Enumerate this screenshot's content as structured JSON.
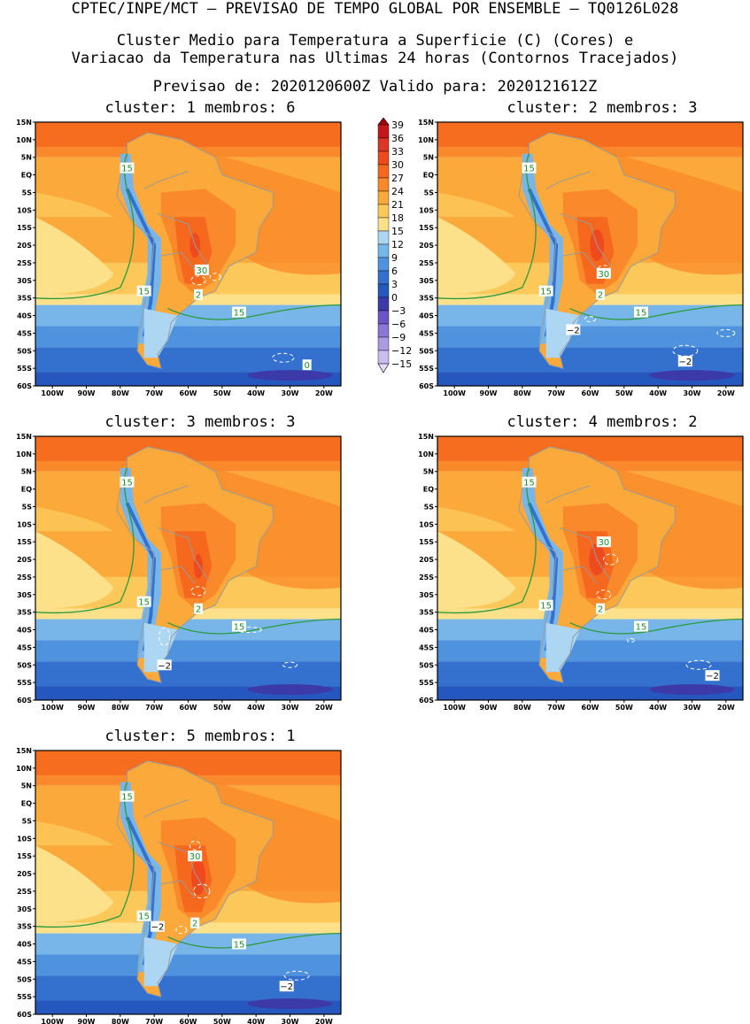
{
  "header": {
    "line1": "CPTEC/INPE/MCT — PREVISAO DE TEMPO GLOBAL POR ENSEMBLE — TQ0126L028",
    "line2": "Cluster Medio para Temperatura a Superficie (C) (Cores) e",
    "line3": "Variacao da Temperatura nas Ultimas 24 horas (Contornos Tracejados)",
    "line4": "Previsao de: 2020120600Z   Valido para: 2020121612Z"
  },
  "axes": {
    "lat_labels": [
      "15N",
      "10N",
      "5N",
      "EQ",
      "5S",
      "10S",
      "15S",
      "20S",
      "25S",
      "30S",
      "35S",
      "40S",
      "45S",
      "50S",
      "55S",
      "60S"
    ],
    "lon_labels": [
      "100W",
      "90W",
      "80W",
      "70W",
      "60W",
      "50W",
      "40W",
      "30W",
      "20W"
    ]
  },
  "colorbar": {
    "levels": [
      "39",
      "36",
      "33",
      "30",
      "27",
      "24",
      "21",
      "18",
      "15",
      "12",
      "9",
      "6",
      "3",
      "0",
      "−3",
      "−6",
      "−9",
      "−12",
      "−15"
    ],
    "colors": [
      "#a5000e",
      "#c4161c",
      "#dd3526",
      "#ee4a1d",
      "#f6681e",
      "#f9892a",
      "#fba93a",
      "#fdc85a",
      "#fde08a",
      "#acd6f2",
      "#78b6ea",
      "#4f93de",
      "#3471cf",
      "#2557bf",
      "#3c3aa8",
      "#6a55c8",
      "#8a77d6",
      "#a99ae2",
      "#c8bdee",
      "#e3dbf7"
    ]
  },
  "panels": [
    {
      "title": "cluster: 1   membros: 6",
      "labels": [
        "15",
        "15",
        "15",
        "30",
        "2",
        "0"
      ]
    },
    {
      "title": "cluster: 2   membros: 3",
      "labels": [
        "15",
        "15",
        "15",
        "30",
        "2",
        "−2",
        "−2"
      ]
    },
    {
      "title": "cluster: 3   membros: 3",
      "labels": [
        "15",
        "15",
        "15",
        "2",
        "−2"
      ]
    },
    {
      "title": "cluster: 4   membros: 2",
      "labels": [
        "15",
        "15",
        "15",
        "30",
        "2",
        "−2"
      ]
    },
    {
      "title": "cluster: 5   membros: 1",
      "labels": [
        "15",
        "15",
        "15",
        "30",
        "2",
        "−2",
        "−2"
      ]
    }
  ]
}
